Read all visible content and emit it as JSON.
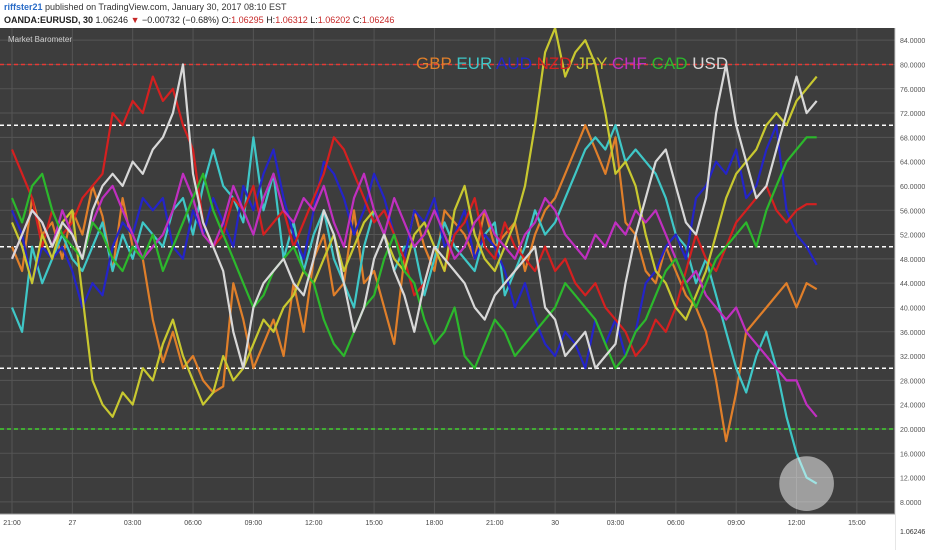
{
  "header": {
    "user": "riffster21",
    "published": " published on TradingView.com, January 30, 2017 08:10 EST",
    "symbol": "OANDA:EURUSD, 30",
    "last": "1.06246",
    "change": "−0.00732 (−0.68%)",
    "o_label": "O:",
    "o_val": "1.06295",
    "h_label": "H:",
    "h_val": "1.06312",
    "l_label": "L:",
    "l_val": "1.06202",
    "c_label": "C:",
    "c_val": "1.06246"
  },
  "indicator_title": "Market Barometer",
  "price_label": "1.06246",
  "colors": {
    "background": "#3d3d3d",
    "grid": "#555555",
    "panel_bg": "#ffffff"
  },
  "chart_data": {
    "type": "line",
    "ylim": [
      6,
      86
    ],
    "yticks": [
      8,
      12,
      16,
      20,
      24,
      28,
      32,
      36,
      40,
      44,
      48,
      52,
      56,
      60,
      64,
      68,
      72,
      76,
      80,
      84
    ],
    "ytick_labels": [
      "8.0000",
      "12.0000",
      "16.0000",
      "20.0000",
      "24.0000",
      "28.0000",
      "32.0000",
      "36.0000",
      "40.0000",
      "44.0000",
      "48.0000",
      "52.0000",
      "56.0000",
      "60.0000",
      "64.0000",
      "68.0000",
      "72.0000",
      "76.0000",
      "80.0000",
      "84.0000"
    ],
    "x_ticks": [
      {
        "t": 0,
        "label": "21:00"
      },
      {
        "t": 6,
        "label": "27"
      },
      {
        "t": 12,
        "label": "03:00"
      },
      {
        "t": 18,
        "label": "06:00"
      },
      {
        "t": 24,
        "label": "09:00"
      },
      {
        "t": 30,
        "label": "12:00"
      },
      {
        "t": 36,
        "label": "15:00"
      },
      {
        "t": 42,
        "label": "18:00"
      },
      {
        "t": 48,
        "label": "21:00"
      },
      {
        "t": 54,
        "label": "30"
      },
      {
        "t": 60,
        "label": "03:00"
      },
      {
        "t": 66,
        "label": "06:00"
      },
      {
        "t": 72,
        "label": "09:00"
      },
      {
        "t": 78,
        "label": "12:00"
      },
      {
        "t": 84,
        "label": "15:00"
      }
    ],
    "levels": [
      {
        "value": 80,
        "color": "#e53935"
      },
      {
        "value": 70,
        "color": "#ffffff"
      },
      {
        "value": 50,
        "color": "#ffffff"
      },
      {
        "value": 30,
        "color": "#ffffff"
      },
      {
        "value": 20,
        "color": "#43d12f"
      }
    ],
    "highlight_circle": {
      "t": 79,
      "value": 11,
      "radius_units": 4.5
    },
    "series": [
      {
        "name": "GBP",
        "color": "#e07f2a",
        "values": [
          50,
          46,
          58,
          52,
          54,
          48,
          56,
          52,
          60,
          55,
          46,
          58,
          50,
          48,
          38,
          31,
          36,
          30,
          32,
          28,
          26,
          27,
          44,
          38,
          30,
          34,
          38,
          32,
          44,
          36,
          48,
          52,
          42,
          44,
          56,
          44,
          46,
          40,
          34,
          48,
          56,
          50,
          46,
          56,
          54,
          52,
          48,
          56,
          50,
          52,
          54,
          46,
          52,
          56,
          58,
          62,
          66,
          70,
          66,
          62,
          68,
          54,
          52,
          46,
          44,
          50,
          46,
          42,
          40,
          36,
          28,
          18,
          26,
          36,
          38,
          40,
          42,
          44,
          40,
          44,
          43
        ]
      },
      {
        "name": "EUR",
        "color": "#3fc7c7",
        "values": [
          40,
          36,
          50,
          44,
          48,
          52,
          48,
          46,
          50,
          54,
          46,
          52,
          48,
          54,
          52,
          50,
          56,
          58,
          52,
          60,
          66,
          60,
          58,
          54,
          68,
          56,
          62,
          48,
          54,
          46,
          52,
          56,
          48,
          44,
          40,
          50,
          56,
          52,
          46,
          50,
          50,
          42,
          48,
          54,
          50,
          48,
          46,
          52,
          54,
          42,
          46,
          50,
          56,
          52,
          54,
          58,
          62,
          66,
          68,
          66,
          70,
          64,
          66,
          64,
          62,
          58,
          52,
          50,
          44,
          48,
          42,
          36,
          30,
          26,
          32,
          36,
          30,
          22,
          16,
          12,
          11
        ]
      },
      {
        "name": "AUD",
        "color": "#2424c8",
        "values": [
          56,
          52,
          44,
          50,
          48,
          50,
          46,
          40,
          44,
          42,
          50,
          54,
          52,
          58,
          56,
          58,
          50,
          48,
          56,
          52,
          58,
          54,
          50,
          60,
          56,
          62,
          66,
          58,
          52,
          48,
          56,
          64,
          62,
          58,
          52,
          56,
          62,
          58,
          52,
          48,
          56,
          54,
          58,
          50,
          52,
          56,
          48,
          52,
          50,
          46,
          40,
          44,
          38,
          34,
          32,
          36,
          34,
          30,
          38,
          34,
          38,
          32,
          36,
          44,
          46,
          50,
          52,
          48,
          58,
          60,
          64,
          62,
          66,
          58,
          60,
          66,
          70,
          56,
          52,
          50,
          47
        ]
      },
      {
        "name": "NZD",
        "color": "#d52020",
        "values": [
          66,
          62,
          58,
          50,
          56,
          52,
          54,
          58,
          60,
          62,
          72,
          70,
          74,
          72,
          78,
          74,
          76,
          70,
          66,
          54,
          50,
          52,
          58,
          56,
          60,
          52,
          54,
          56,
          50,
          54,
          58,
          62,
          68,
          66,
          62,
          58,
          54,
          56,
          52,
          48,
          42,
          44,
          50,
          46,
          52,
          54,
          58,
          50,
          48,
          54,
          50,
          48,
          46,
          50,
          46,
          48,
          44,
          42,
          44,
          40,
          38,
          36,
          32,
          34,
          38,
          36,
          40,
          46,
          52,
          48,
          46,
          50,
          54,
          56,
          58,
          60,
          56,
          54,
          56,
          57,
          57
        ]
      },
      {
        "name": "JPY",
        "color": "#c8c830",
        "values": [
          54,
          50,
          44,
          52,
          48,
          54,
          56,
          42,
          28,
          24,
          22,
          26,
          24,
          30,
          28,
          34,
          38,
          32,
          28,
          24,
          26,
          32,
          28,
          30,
          34,
          38,
          36,
          40,
          42,
          46,
          44,
          48,
          52,
          46,
          50,
          54,
          56,
          52,
          48,
          46,
          52,
          54,
          50,
          46,
          56,
          60,
          52,
          48,
          46,
          50,
          54,
          60,
          70,
          82,
          86,
          78,
          82,
          84,
          80,
          72,
          62,
          64,
          60,
          52,
          46,
          44,
          40,
          38,
          42,
          46,
          52,
          58,
          62,
          64,
          66,
          70,
          72,
          70,
          74,
          76,
          78
        ]
      },
      {
        "name": "CHF",
        "color": "#c02fc0",
        "values": [
          48,
          52,
          56,
          54,
          50,
          56,
          52,
          48,
          54,
          58,
          60,
          56,
          52,
          48,
          50,
          52,
          56,
          62,
          58,
          52,
          50,
          54,
          60,
          56,
          52,
          58,
          62,
          56,
          54,
          58,
          56,
          60,
          54,
          50,
          58,
          62,
          56,
          52,
          58,
          54,
          50,
          52,
          56,
          52,
          48,
          50,
          54,
          56,
          52,
          50,
          48,
          52,
          54,
          58,
          56,
          52,
          50,
          48,
          52,
          50,
          54,
          52,
          56,
          54,
          56,
          52,
          48,
          44,
          46,
          42,
          40,
          38,
          40,
          36,
          34,
          32,
          30,
          28,
          28,
          24,
          22
        ]
      },
      {
        "name": "CAD",
        "color": "#2cb82c",
        "values": [
          58,
          54,
          60,
          62,
          56,
          52,
          50,
          48,
          54,
          52,
          48,
          46,
          50,
          48,
          52,
          46,
          50,
          54,
          58,
          62,
          56,
          52,
          48,
          44,
          40,
          42,
          46,
          48,
          50,
          46,
          44,
          38,
          34,
          32,
          36,
          40,
          42,
          48,
          52,
          46,
          44,
          38,
          34,
          36,
          40,
          32,
          30,
          34,
          38,
          36,
          32,
          34,
          36,
          38,
          40,
          44,
          42,
          40,
          38,
          34,
          30,
          32,
          36,
          38,
          42,
          46,
          48,
          44,
          40,
          44,
          48,
          50,
          52,
          54,
          50,
          56,
          60,
          64,
          66,
          68,
          68
        ]
      },
      {
        "name": "USD",
        "color": "#d8d8d8",
        "values": [
          48,
          52,
          56,
          54,
          50,
          54,
          52,
          48,
          56,
          60,
          62,
          60,
          64,
          62,
          66,
          68,
          72,
          80,
          62,
          54,
          50,
          46,
          36,
          30,
          40,
          44,
          46,
          48,
          44,
          42,
          48,
          56,
          52,
          44,
          36,
          40,
          48,
          52,
          46,
          42,
          36,
          44,
          50,
          48,
          46,
          44,
          40,
          38,
          42,
          44,
          46,
          48,
          50,
          40,
          38,
          32,
          34,
          36,
          30,
          32,
          34,
          44,
          52,
          58,
          64,
          66,
          60,
          54,
          52,
          58,
          72,
          80,
          70,
          64,
          58,
          60,
          66,
          72,
          78,
          72,
          74
        ]
      }
    ]
  }
}
